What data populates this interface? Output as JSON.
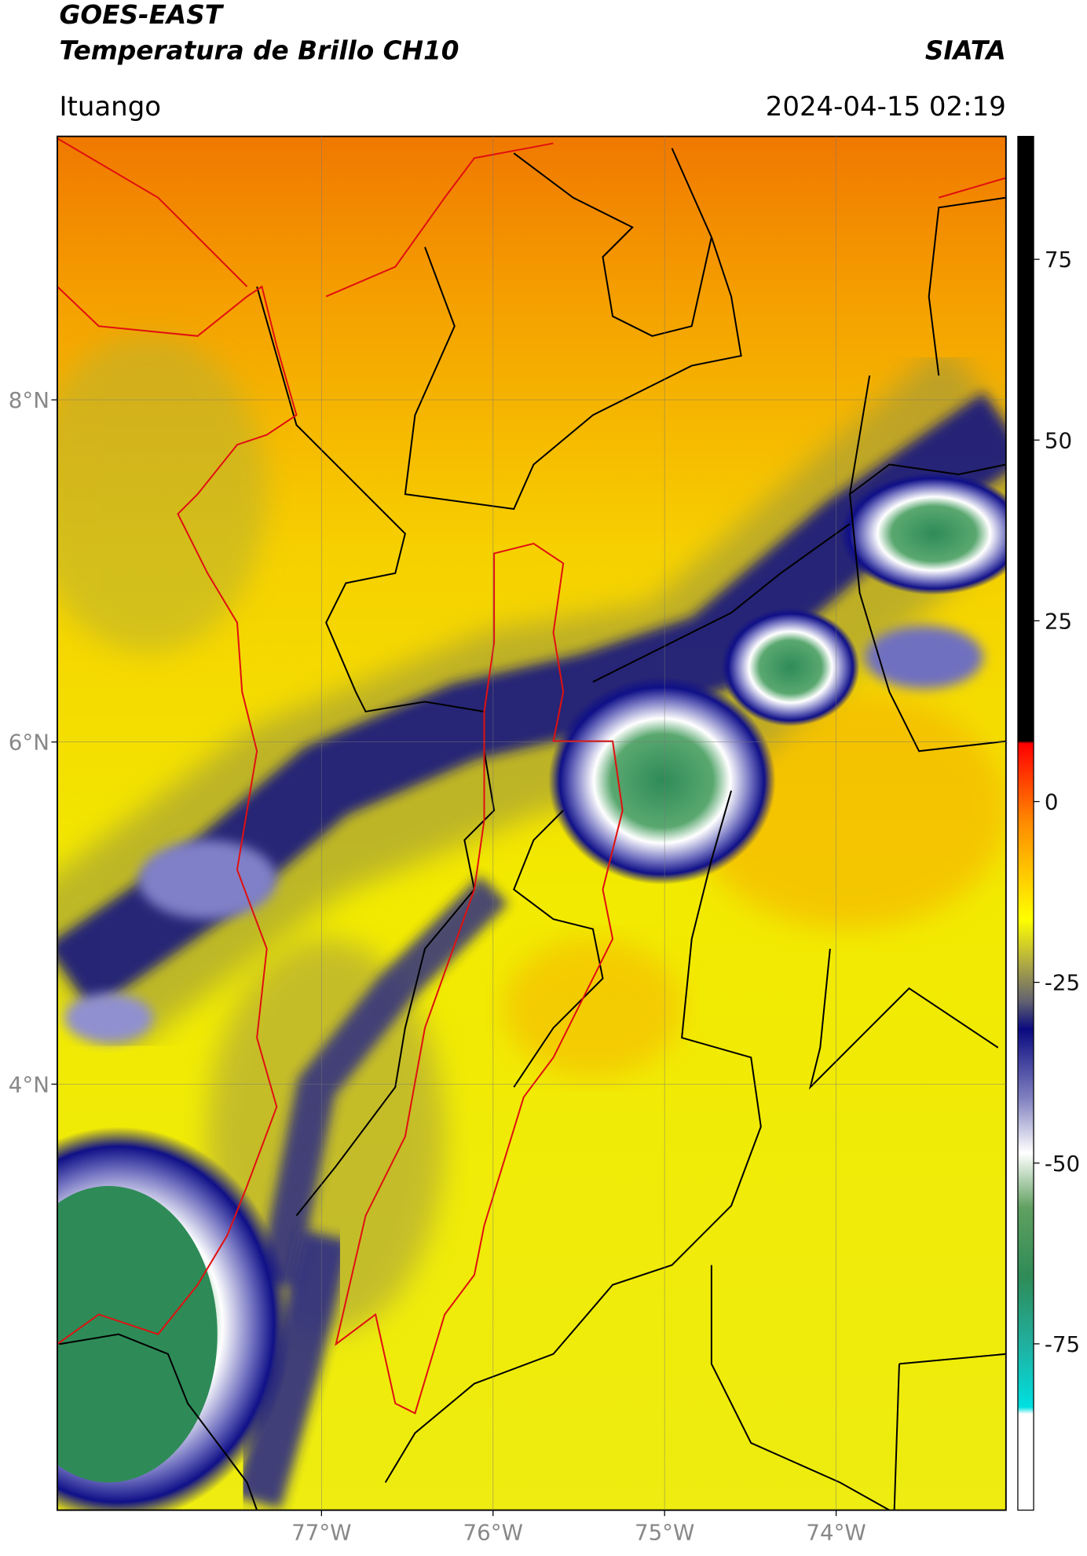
{
  "chart_data": {
    "type": "map",
    "title": "GOES-EAST",
    "subtitle": "Temperatura de Brillo CH10",
    "source": "SIATA",
    "location": "Ituango",
    "datetime": "2024-04-15 02:19",
    "xlim": [
      -78.54,
      -73.01
    ],
    "ylim": [
      1.51,
      9.54
    ],
    "xticks": [
      {
        "value": -77,
        "label": "77°W"
      },
      {
        "value": -76,
        "label": "76°W"
      },
      {
        "value": -75,
        "label": "75°W"
      },
      {
        "value": -74,
        "label": "74°W"
      }
    ],
    "yticks": [
      {
        "value": 8,
        "label": "8°N"
      },
      {
        "value": 6,
        "label": "6°N"
      },
      {
        "value": 4,
        "label": "4°N"
      }
    ],
    "grid": true,
    "clim": [
      -98,
      92
    ],
    "cticks": [
      75,
      50,
      25,
      0,
      -25,
      -50,
      -75
    ]
  }
}
